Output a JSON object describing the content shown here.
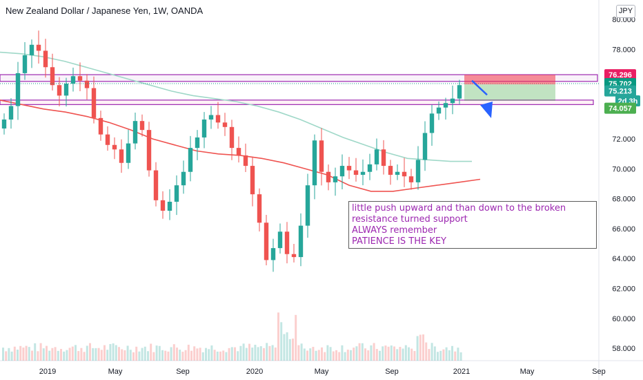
{
  "header": {
    "title": "New Zealand Dollar / Japanese Yen, 1W, OANDA",
    "scale_button": "JPY"
  },
  "annotation": {
    "lines": [
      "little push upward and than down to the broken",
      "resistance turned support",
      "ALWAYS remember",
      "PATIENCE IS THE KEY"
    ]
  },
  "price_labels": [
    {
      "text": "76.296",
      "value": 76.296,
      "bg": "#e91e63",
      "fg": "#ffffff"
    },
    {
      "text": "75.702",
      "value": 75.702,
      "bg": "#089981",
      "fg": "#ffffff"
    },
    {
      "text": "75.213",
      "value": 75.213,
      "bg": "#26a69a",
      "fg": "#ffffff"
    },
    {
      "text": "2d 3h",
      "value": 74.55,
      "bg": "#26a69a",
      "fg": "#ffffff"
    },
    {
      "text": "74.057",
      "value": 74.057,
      "bg": "#4caf50",
      "fg": "#ffffff"
    }
  ],
  "chart_data": {
    "type": "line",
    "symbol": "NZDJPY",
    "timeframe": "1W",
    "ylim": [
      57.8,
      80.6
    ],
    "y_ticks": [
      "58.000",
      "60.000",
      "62.000",
      "64.000",
      "66.000",
      "68.000",
      "70.000",
      "72.000",
      "74.000",
      "76.000",
      "78.000",
      "80.000"
    ],
    "x_ticks": [
      "2019",
      "May",
      "Sep",
      "2020",
      "May",
      "Sep",
      "2021",
      "May",
      "Sep"
    ],
    "series": [
      {
        "name": "",
        "color": "#26a69a",
        "values": [
          73.3,
          74.2,
          76.4,
          77.6,
          78.3,
          77.9,
          76.8,
          75.6,
          74.9,
          75.7,
          76.2,
          75.9,
          75.4,
          73.4,
          72.3,
          71.6,
          71.3,
          70.4,
          71.7,
          73.2,
          72.6,
          69.9,
          67.9,
          67.2,
          67.8,
          68.9,
          69.8,
          71.4,
          72.1,
          73.3,
          73.6,
          73.1,
          72.8,
          71.4,
          70.9,
          70.2,
          68.3,
          66.4,
          63.9,
          64.7,
          65.8,
          64.3,
          64.1,
          66.2,
          68.9,
          71.9,
          69.8,
          69.1,
          69.5,
          70.2,
          69.9,
          69.6,
          69.8,
          70.3,
          71.3,
          70.2,
          69.6,
          69.8,
          69.5,
          69.1,
          70.6,
          72.4,
          73.7,
          74.1,
          74.4,
          74.7,
          75.6
        ]
      },
      {
        "name": "",
        "color": "#ef5350",
        "values": [
          74.6,
          74.3,
          74.0,
          73.8,
          73.5,
          73.1,
          72.6,
          72.0,
          71.6,
          71.2,
          71.0,
          70.9,
          70.7,
          70.4,
          70.0,
          69.6,
          68.9,
          68.5,
          68.5,
          68.7,
          68.9,
          69.1,
          69.3
        ]
      },
      {
        "name": "",
        "color": "#9fd8c8",
        "values": [
          77.8,
          77.7,
          77.5,
          77.2,
          76.8,
          76.4,
          76.0,
          75.6,
          75.2,
          74.9,
          74.7,
          74.5,
          74.2,
          73.8,
          73.3,
          72.7,
          72.1,
          71.6,
          71.1,
          70.7,
          70.6,
          70.5,
          70.5
        ]
      }
    ],
    "zones": [
      {
        "name": "resistance",
        "from": 75.85,
        "to": 76.3,
        "color": "#9c27b0"
      },
      {
        "name": "support",
        "from": 74.3,
        "to": 74.6,
        "color": "#9c27b0"
      }
    ],
    "position": {
      "entry": 75.65,
      "stop": 76.296,
      "target": 74.55
    },
    "note": "weekly candles, volume histogram at bottom"
  }
}
